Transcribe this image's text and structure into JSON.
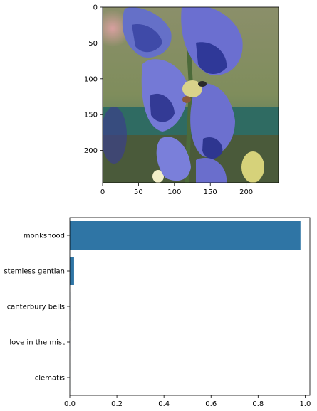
{
  "image_panel": {
    "description_icon": "flower-photo-icon",
    "x_ticks": [
      "0",
      "50",
      "100",
      "150",
      "200"
    ],
    "y_ticks": [
      "0",
      "50",
      "100",
      "150",
      "200"
    ],
    "x_range": [
      0,
      245
    ],
    "y_range": [
      0,
      245
    ]
  },
  "chart_data": {
    "type": "bar",
    "orientation": "horizontal",
    "categories": [
      "monkshood",
      "stemless gentian",
      "canterbury bells",
      "love in the mist",
      "clematis"
    ],
    "values": [
      0.98,
      0.018,
      0.0005,
      0.0003,
      0.0002
    ],
    "xlim": [
      0,
      1.02
    ],
    "x_ticks": [
      "0.0",
      "0.2",
      "0.4",
      "0.6",
      "0.8",
      "1.0"
    ],
    "bar_color": "#2f75a5",
    "grid": false
  }
}
